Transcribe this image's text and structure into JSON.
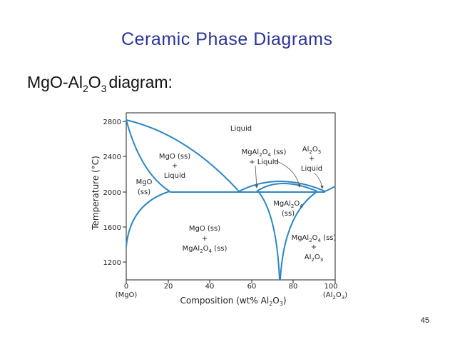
{
  "title": "Ceramic Phase Diagrams",
  "subtitle": [
    "MgO-Al",
    "2",
    "O",
    "3",
    "diagram:"
  ],
  "diagram": {
    "y_axis_label": "Temperature (°C)",
    "x_axis_label": [
      "Composition (wt% Al",
      "2",
      "O",
      "3",
      ")"
    ],
    "yticks": [
      "2800",
      "2400",
      "2000",
      "1600",
      "1200"
    ],
    "xticks": [
      "0",
      "20",
      "40",
      "60",
      "80",
      "100"
    ],
    "x_left_end": "(MgO)",
    "x_right_end": [
      "(Al",
      "2",
      "O",
      "3",
      ")"
    ],
    "regions": {
      "liquid": "Liquid",
      "mgo_liquid": [
        "MgO (ss)",
        "+",
        "Liquid"
      ],
      "mgo_ss": [
        "MgO",
        "(ss)"
      ],
      "spinel_liquid": [
        [
          "MgAl",
          "2",
          "O",
          "4",
          " (ss)"
        ],
        "+ Liquid"
      ],
      "alumina_liquid": [
        [
          "Al",
          "2",
          "O",
          "3"
        ],
        "+",
        "Liquid"
      ],
      "spinel_ss": [
        [
          "MgAl",
          "2",
          "O",
          "4"
        ],
        "(ss)"
      ],
      "mgo_spinel": [
        "MgO (ss)",
        "+",
        [
          "MgAl",
          "2",
          "O",
          "4",
          " (ss)"
        ]
      ],
      "spinel_alumina": [
        [
          "MgAl",
          "2",
          "O",
          "4",
          " (ss)"
        ],
        "+",
        [
          "Al",
          "2",
          "O",
          "3"
        ]
      ]
    }
  },
  "page_number": "45"
}
